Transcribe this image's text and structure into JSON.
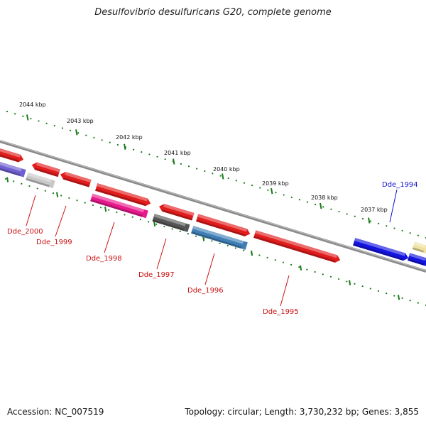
{
  "title": "Desulfovibrio desulfuricans G20, complete genome",
  "footer": {
    "accession": "Accession: NC_007519",
    "summary": "Topology: circular; Length: 3,730,232 bp; Genes: 3,855"
  },
  "scale": {
    "labels": [
      "2044 kbp",
      "2043 kbp",
      "2042 kbp",
      "2041 kbp",
      "2040 kbp",
      "2039 kbp",
      "2038 kbp",
      "2037 kbp"
    ],
    "major_tick_color": "#1a7a1a"
  },
  "genes": [
    {
      "name": "Dde_2000",
      "color": "#e11c1c"
    },
    {
      "name": "Dde_1999",
      "color": "#e11c1c"
    },
    {
      "name": "Dde_1998",
      "color": "#e8198c"
    },
    {
      "name": "Dde_1997",
      "color": "#555555"
    },
    {
      "name": "Dde_1996",
      "color": "#3f7fb6"
    },
    {
      "name": "Dde_1995",
      "color": "#e11c1c"
    },
    {
      "name": "Dde_1994",
      "color": "#1414e0"
    }
  ],
  "colors": {
    "backbone": "#8a8a8a",
    "label_red": "#cc1111",
    "label_blue": "#1111cc",
    "forward_gene": "#e11c1c",
    "reverse_red": "#e11c1c",
    "purple": "#6f5fd0",
    "light_gray": "#c8c8c8",
    "cream": "#f0e2a0",
    "blue": "#1414e0"
  }
}
